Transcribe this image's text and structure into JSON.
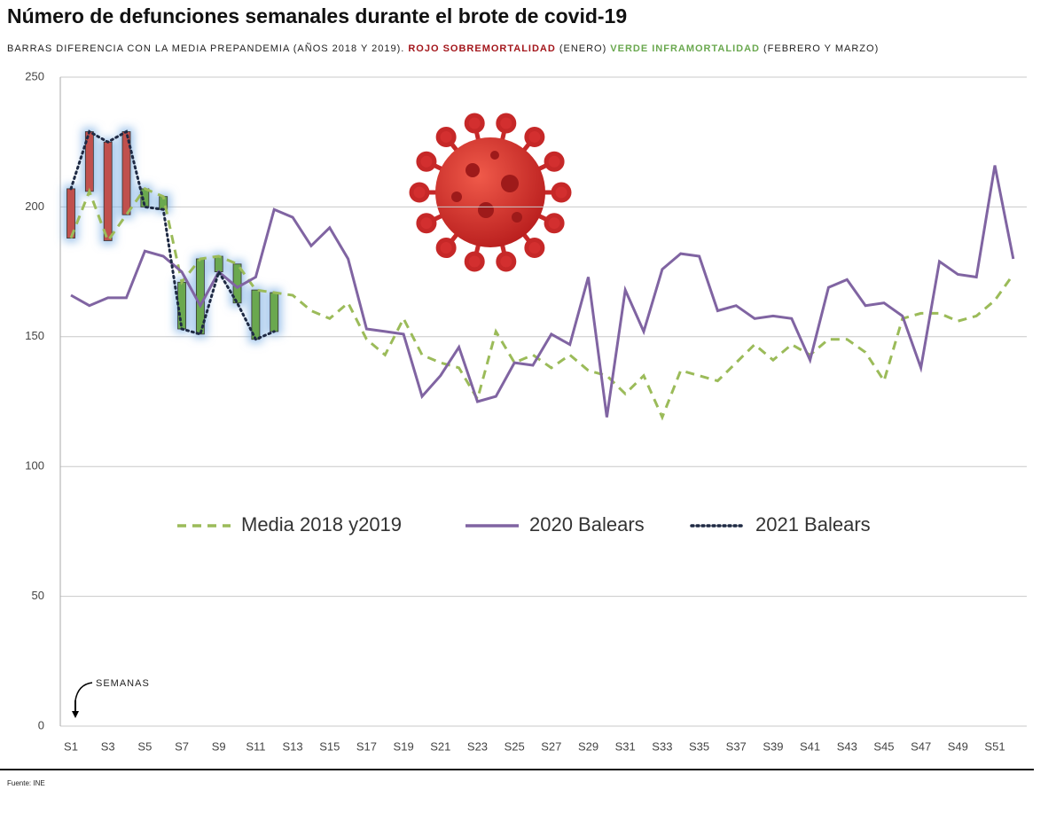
{
  "chart_data": {
    "type": "line",
    "title": "Número de defunciones semanales durante el brote de covid-19",
    "subtitle": [
      "BARRAS DIFERENCIA CON LA MEDIA PREPANDEMIA (AÑOS 2018 Y 2019).",
      "ROJO SOBREMORTALIDAD",
      "(ENERO)",
      "VERDE INFRAMORTALIDAD",
      "(FEBRERO Y MARZO)"
    ],
    "subtitle_colors": [
      "#222222",
      "#a3161b",
      "#222222",
      "#6aa84f",
      "#222222"
    ],
    "annotation": "SEMANAS",
    "source": "Fuente: INE",
    "categories": [
      "S1",
      null,
      "S3",
      null,
      "S5",
      null,
      "S7",
      null,
      "S9",
      null,
      "S11",
      null,
      "S13",
      null,
      "S15",
      null,
      "S17",
      null,
      "S19",
      null,
      "S21",
      null,
      "S23",
      null,
      "S25",
      null,
      "S27",
      null,
      "S29",
      null,
      "S31",
      null,
      "S33",
      null,
      "S35",
      null,
      "S37",
      null,
      "S39",
      null,
      "S41",
      null,
      "S43",
      null,
      "S45",
      null,
      "S47",
      null,
      "S49",
      null,
      "S51",
      null
    ],
    "series": [
      {
        "name": "Media 2018 y2019",
        "color": "#9bbb59",
        "style": "dashed",
        "values": [
          188,
          206,
          187,
          197,
          207,
          204,
          171,
          180,
          181,
          178,
          168,
          167,
          166,
          160,
          157,
          163,
          149,
          143,
          157,
          143,
          140,
          138,
          126,
          152,
          140,
          143,
          138,
          143,
          137,
          135,
          128,
          135,
          119,
          137,
          135,
          133,
          140,
          147,
          141,
          147,
          143,
          149,
          149,
          144,
          133,
          157,
          159,
          159,
          156,
          158,
          164,
          174
        ]
      },
      {
        "name": "2020 Balears",
        "color": "#8064a2",
        "style": "solid",
        "values": [
          166,
          162,
          165,
          165,
          183,
          181,
          175,
          162,
          175,
          169,
          173,
          199,
          196,
          185,
          192,
          180,
          153,
          152,
          151,
          127,
          135,
          146,
          125,
          127,
          140,
          139,
          151,
          147,
          173,
          119,
          168,
          152,
          176,
          182,
          181,
          160,
          162,
          157,
          158,
          157,
          141,
          169,
          172,
          162,
          163,
          158,
          138,
          179,
          174,
          173,
          216,
          180
        ]
      },
      {
        "name": "2021 Balears",
        "color": "#1f2a44",
        "style": "dotted",
        "values": [
          207,
          229,
          225,
          229,
          200,
          199,
          153,
          151,
          175,
          163,
          149,
          152,
          null,
          null,
          null,
          null,
          null,
          null,
          null,
          null,
          null,
          null,
          null,
          null,
          null,
          null,
          null,
          null,
          null,
          null,
          null,
          null,
          null,
          null,
          null,
          null,
          null,
          null,
          null,
          null,
          null,
          null,
          null,
          null,
          null,
          null,
          null,
          null,
          null,
          null,
          null,
          null
        ]
      }
    ],
    "bars": {
      "from": 0,
      "to": 2,
      "above_color": "#c0504d",
      "below_color": "#6aa84f"
    },
    "ylim": [
      0,
      250
    ],
    "yticks": [
      0,
      50,
      100,
      150,
      200,
      250
    ],
    "grid": true,
    "legend": "center"
  }
}
